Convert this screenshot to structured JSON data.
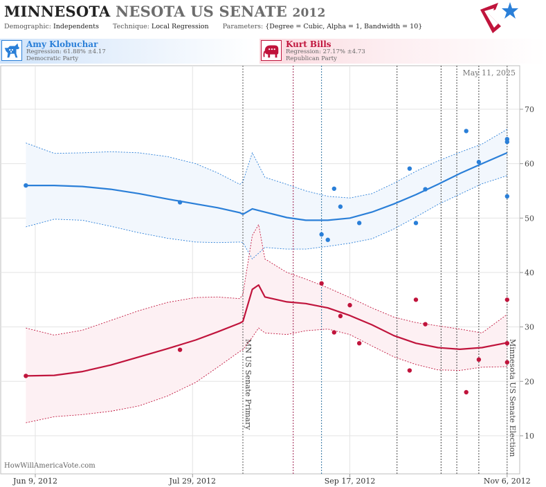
{
  "header": {
    "title_state": "MINNESOTA",
    "title_repeat": "NESOTA",
    "title_race": "US SENATE",
    "title_year": "2012",
    "demographic_label": "Demographic:",
    "demographic_value": "Independents",
    "technique_label": "Technique:",
    "technique_value": "Local Regression",
    "parameters_label": "Parameters:",
    "parameters_value": "{Degree = Cubic, Alpha = 1, Bandwidth = 10}",
    "logo_icon": "star-logo-icon"
  },
  "candidates": {
    "dem": {
      "name": "Amy Klobuchar",
      "regression": "Regression: 61.88% ±4.17",
      "party": "Democratic Party",
      "icon": "donkey-icon",
      "color": "#2a7fd8"
    },
    "rep": {
      "name": "Kurt Bills",
      "regression": "Regression: 27.17% ±4.73",
      "party": "Republican Party",
      "icon": "elephant-icon",
      "color": "#c0143c"
    }
  },
  "footer": {
    "source": "HowWillAmericaVote.com"
  },
  "chart_data": {
    "type": "line",
    "date_label": "May 11, 2025",
    "x_ticks": [
      {
        "label": "Jun 9, 2012",
        "date": "2012-06-09"
      },
      {
        "label": "Jul 29, 2012",
        "date": "2012-07-29"
      },
      {
        "label": "Sep 17, 2012",
        "date": "2012-09-17"
      },
      {
        "label": "Nov 6, 2012",
        "date": "2012-11-06"
      }
    ],
    "xlim": [
      "2012-05-29",
      "2012-11-10"
    ],
    "y_ticks": [
      10,
      20,
      30,
      40,
      50,
      60,
      70
    ],
    "ylim": [
      3,
      78
    ],
    "grid": true,
    "annotations": [
      {
        "text": "MN US Senate Primary",
        "date": "2012-08-14"
      },
      {
        "text": "Minnesota US Senate Election",
        "date": "2012-11-06"
      }
    ],
    "event_lines": [
      {
        "date": "2012-08-30",
        "color": "#9b1b4b"
      },
      {
        "date": "2012-09-08",
        "color": "#2a6f9e"
      },
      {
        "date": "2012-10-02",
        "color": "#444444"
      },
      {
        "date": "2012-10-16",
        "color": "#444444"
      },
      {
        "date": "2012-10-21",
        "color": "#444444"
      },
      {
        "date": "2012-10-28",
        "color": "#444444"
      }
    ],
    "series": [
      {
        "name": "Amy Klobuchar",
        "color": "#2a7fd8",
        "band_color": "#f2f7fd",
        "line": [
          [
            "2012-06-06",
            56.0
          ],
          [
            "2012-06-15",
            56.0
          ],
          [
            "2012-06-24",
            55.8
          ],
          [
            "2012-07-03",
            55.3
          ],
          [
            "2012-07-12",
            54.5
          ],
          [
            "2012-07-21",
            53.5
          ],
          [
            "2012-07-30",
            52.6
          ],
          [
            "2012-08-06",
            51.9
          ],
          [
            "2012-08-13",
            51.0
          ],
          [
            "2012-08-14",
            50.7
          ],
          [
            "2012-08-17",
            51.7
          ],
          [
            "2012-08-21",
            51.1
          ],
          [
            "2012-08-28",
            50.1
          ],
          [
            "2012-09-03",
            49.6
          ],
          [
            "2012-09-10",
            49.6
          ],
          [
            "2012-09-17",
            50.0
          ],
          [
            "2012-09-24",
            51.1
          ],
          [
            "2012-10-01",
            52.6
          ],
          [
            "2012-10-08",
            54.3
          ],
          [
            "2012-10-15",
            56.2
          ],
          [
            "2012-10-22",
            58.2
          ],
          [
            "2012-10-29",
            60.0
          ],
          [
            "2012-11-06",
            62.0
          ]
        ],
        "upper": [
          [
            "2012-06-06",
            63.8
          ],
          [
            "2012-06-15",
            61.9
          ],
          [
            "2012-06-24",
            62.0
          ],
          [
            "2012-07-03",
            62.2
          ],
          [
            "2012-07-12",
            62.0
          ],
          [
            "2012-07-21",
            61.3
          ],
          [
            "2012-07-30",
            60.0
          ],
          [
            "2012-08-06",
            58.3
          ],
          [
            "2012-08-13",
            56.2
          ],
          [
            "2012-08-14",
            56.7
          ],
          [
            "2012-08-17",
            62.0
          ],
          [
            "2012-08-21",
            57.5
          ],
          [
            "2012-08-28",
            56.2
          ],
          [
            "2012-09-03",
            55.0
          ],
          [
            "2012-09-10",
            54.0
          ],
          [
            "2012-09-17",
            53.7
          ],
          [
            "2012-09-24",
            54.5
          ],
          [
            "2012-10-01",
            56.4
          ],
          [
            "2012-10-08",
            58.6
          ],
          [
            "2012-10-15",
            60.5
          ],
          [
            "2012-10-22",
            62.1
          ],
          [
            "2012-10-29",
            63.6
          ],
          [
            "2012-11-06",
            66.3
          ]
        ],
        "lower": [
          [
            "2012-06-06",
            48.4
          ],
          [
            "2012-06-15",
            49.8
          ],
          [
            "2012-06-24",
            49.6
          ],
          [
            "2012-07-03",
            48.5
          ],
          [
            "2012-07-12",
            47.3
          ],
          [
            "2012-07-21",
            46.3
          ],
          [
            "2012-07-30",
            45.6
          ],
          [
            "2012-08-06",
            45.5
          ],
          [
            "2012-08-13",
            45.6
          ],
          [
            "2012-08-14",
            45.5
          ],
          [
            "2012-08-17",
            42.5
          ],
          [
            "2012-08-21",
            44.6
          ],
          [
            "2012-08-28",
            44.3
          ],
          [
            "2012-09-03",
            44.3
          ],
          [
            "2012-09-10",
            44.8
          ],
          [
            "2012-09-17",
            45.4
          ],
          [
            "2012-09-24",
            46.2
          ],
          [
            "2012-10-01",
            48.0
          ],
          [
            "2012-10-08",
            50.2
          ],
          [
            "2012-10-15",
            52.5
          ],
          [
            "2012-10-22",
            54.4
          ],
          [
            "2012-10-29",
            56.3
          ],
          [
            "2012-11-06",
            57.8
          ]
        ],
        "points": [
          [
            "2012-06-06",
            56.0
          ],
          [
            "2012-07-25",
            52.9
          ],
          [
            "2012-09-08",
            47.0
          ],
          [
            "2012-09-12",
            55.4
          ],
          [
            "2012-09-14",
            52.1
          ],
          [
            "2012-09-10",
            46.0
          ],
          [
            "2012-09-20",
            49.1
          ],
          [
            "2012-10-06",
            59.1
          ],
          [
            "2012-10-08",
            49.1
          ],
          [
            "2012-10-11",
            55.3
          ],
          [
            "2012-10-24",
            66.0
          ],
          [
            "2012-10-28",
            60.3
          ],
          [
            "2012-11-06",
            64.5
          ],
          [
            "2012-11-06",
            64.0
          ],
          [
            "2012-11-06",
            54.0
          ]
        ]
      },
      {
        "name": "Kurt Bills",
        "color": "#c0143c",
        "band_color": "#fdf0f3",
        "line": [
          [
            "2012-06-06",
            21.0
          ],
          [
            "2012-06-15",
            21.1
          ],
          [
            "2012-06-24",
            21.8
          ],
          [
            "2012-07-03",
            23.0
          ],
          [
            "2012-07-12",
            24.5
          ],
          [
            "2012-07-21",
            26.0
          ],
          [
            "2012-07-30",
            27.6
          ],
          [
            "2012-08-06",
            29.1
          ],
          [
            "2012-08-13",
            30.7
          ],
          [
            "2012-08-14",
            31.0
          ],
          [
            "2012-08-17",
            36.9
          ],
          [
            "2012-08-19",
            37.7
          ],
          [
            "2012-08-21",
            35.5
          ],
          [
            "2012-08-28",
            34.6
          ],
          [
            "2012-09-03",
            34.3
          ],
          [
            "2012-09-10",
            33.5
          ],
          [
            "2012-09-17",
            32.1
          ],
          [
            "2012-09-24",
            30.4
          ],
          [
            "2012-10-01",
            28.4
          ],
          [
            "2012-10-08",
            27.0
          ],
          [
            "2012-10-15",
            26.2
          ],
          [
            "2012-10-22",
            25.9
          ],
          [
            "2012-10-29",
            26.2
          ],
          [
            "2012-11-06",
            27.1
          ]
        ],
        "upper": [
          [
            "2012-06-06",
            29.8
          ],
          [
            "2012-06-15",
            28.5
          ],
          [
            "2012-06-24",
            29.4
          ],
          [
            "2012-07-03",
            31.2
          ],
          [
            "2012-07-12",
            33.0
          ],
          [
            "2012-07-21",
            34.5
          ],
          [
            "2012-07-30",
            35.4
          ],
          [
            "2012-08-06",
            35.5
          ],
          [
            "2012-08-13",
            35.2
          ],
          [
            "2012-08-14",
            36.0
          ],
          [
            "2012-08-17",
            46.8
          ],
          [
            "2012-08-19",
            48.8
          ],
          [
            "2012-08-21",
            42.5
          ],
          [
            "2012-08-28",
            40.0
          ],
          [
            "2012-09-03",
            38.8
          ],
          [
            "2012-09-10",
            37.2
          ],
          [
            "2012-09-17",
            35.4
          ],
          [
            "2012-09-24",
            33.5
          ],
          [
            "2012-10-01",
            31.8
          ],
          [
            "2012-10-08",
            30.8
          ],
          [
            "2012-10-15",
            30.2
          ],
          [
            "2012-10-22",
            29.6
          ],
          [
            "2012-10-29",
            28.9
          ],
          [
            "2012-11-06",
            32.3
          ]
        ],
        "lower": [
          [
            "2012-06-06",
            12.4
          ],
          [
            "2012-06-15",
            13.5
          ],
          [
            "2012-06-24",
            13.9
          ],
          [
            "2012-07-03",
            14.5
          ],
          [
            "2012-07-12",
            15.5
          ],
          [
            "2012-07-21",
            17.3
          ],
          [
            "2012-07-30",
            19.8
          ],
          [
            "2012-08-06",
            22.6
          ],
          [
            "2012-08-13",
            25.5
          ],
          [
            "2012-08-14",
            25.8
          ],
          [
            "2012-08-17",
            28.1
          ],
          [
            "2012-08-19",
            29.8
          ],
          [
            "2012-08-21",
            28.9
          ],
          [
            "2012-08-28",
            28.6
          ],
          [
            "2012-09-03",
            29.3
          ],
          [
            "2012-09-10",
            29.6
          ],
          [
            "2012-09-17",
            28.6
          ],
          [
            "2012-09-24",
            26.5
          ],
          [
            "2012-10-01",
            24.5
          ],
          [
            "2012-10-08",
            23.1
          ],
          [
            "2012-10-15",
            22.1
          ],
          [
            "2012-10-22",
            22.0
          ],
          [
            "2012-10-29",
            22.6
          ],
          [
            "2012-11-06",
            22.7
          ]
        ],
        "points": [
          [
            "2012-06-06",
            21.0
          ],
          [
            "2012-07-25",
            25.8
          ],
          [
            "2012-09-08",
            38.0
          ],
          [
            "2012-09-12",
            29.0
          ],
          [
            "2012-09-14",
            32.0
          ],
          [
            "2012-09-17",
            34.0
          ],
          [
            "2012-09-20",
            27.0
          ],
          [
            "2012-10-06",
            22.0
          ],
          [
            "2012-10-08",
            35.0
          ],
          [
            "2012-10-11",
            30.5
          ],
          [
            "2012-10-24",
            18.0
          ],
          [
            "2012-10-28",
            24.0
          ],
          [
            "2012-11-06",
            35.0
          ],
          [
            "2012-11-06",
            27.0
          ],
          [
            "2012-11-06",
            23.5
          ]
        ]
      }
    ]
  }
}
